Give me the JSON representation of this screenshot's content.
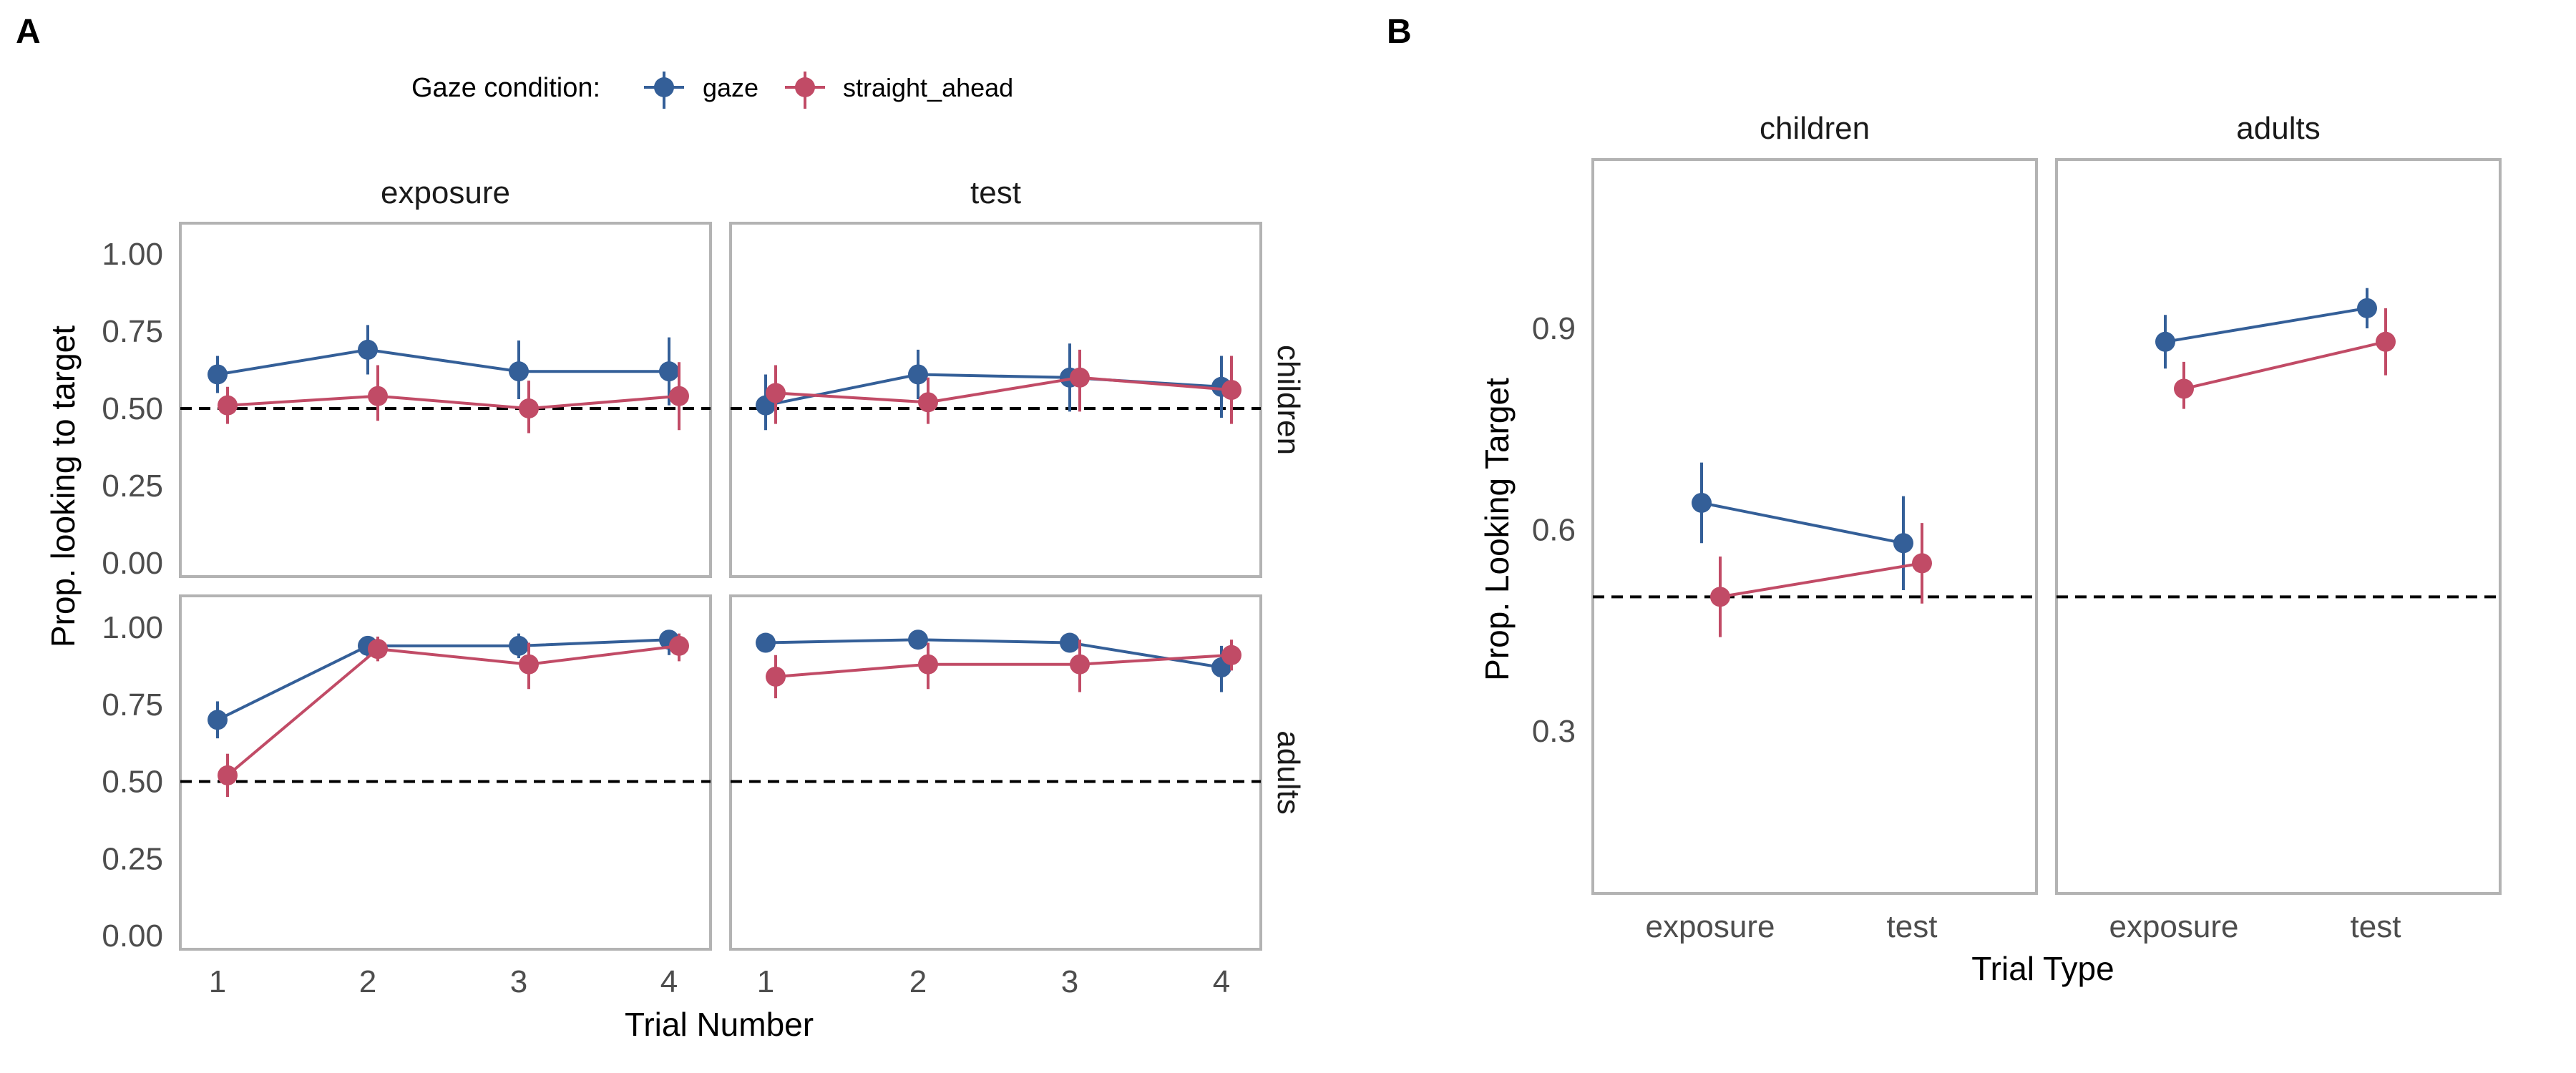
{
  "figure": {
    "panel_a_letter": "A",
    "panel_b_letter": "B"
  },
  "colors": {
    "gaze": "#345f98",
    "straight_ahead": "#c14b66"
  },
  "legend": {
    "title": "Gaze condition:",
    "items": [
      "gaze",
      "straight_ahead"
    ]
  },
  "chart_data": [
    {
      "type": "line",
      "panel": "A",
      "xlabel": "Trial Number",
      "ylabel": "Prop. looking to target",
      "x": [
        1,
        2,
        3,
        4
      ],
      "xticks": [
        "1",
        "2",
        "3",
        "4"
      ],
      "ylim": [
        0,
        1.0
      ],
      "yticks": [
        "0.00",
        "0.25",
        "0.50",
        "0.75",
        "1.00"
      ],
      "reference_line": 0.5,
      "grid": false,
      "legend_position": "top",
      "col_facets": [
        "exposure",
        "test"
      ],
      "row_facets": [
        "children",
        "adults"
      ],
      "facets": [
        {
          "row": "children",
          "col": "exposure",
          "series": [
            {
              "name": "gaze",
              "values": [
                0.61,
                0.69,
                0.62,
                0.62
              ],
              "lower": [
                0.55,
                0.61,
                0.53,
                0.51
              ],
              "upper": [
                0.67,
                0.77,
                0.72,
                0.73
              ]
            },
            {
              "name": "straight_ahead",
              "values": [
                0.51,
                0.54,
                0.5,
                0.54
              ],
              "lower": [
                0.45,
                0.46,
                0.42,
                0.43
              ],
              "upper": [
                0.57,
                0.64,
                0.59,
                0.65
              ]
            }
          ]
        },
        {
          "row": "children",
          "col": "test",
          "series": [
            {
              "name": "gaze",
              "values": [
                0.51,
                0.61,
                0.6,
                0.57
              ],
              "lower": [
                0.43,
                0.53,
                0.49,
                0.47
              ],
              "upper": [
                0.61,
                0.69,
                0.71,
                0.67
              ]
            },
            {
              "name": "straight_ahead",
              "values": [
                0.55,
                0.52,
                0.6,
                0.56
              ],
              "lower": [
                0.45,
                0.45,
                0.49,
                0.45
              ],
              "upper": [
                0.64,
                0.6,
                0.69,
                0.67
              ]
            }
          ]
        },
        {
          "row": "adults",
          "col": "exposure",
          "series": [
            {
              "name": "gaze",
              "values": [
                0.7,
                0.94,
                0.94,
                0.96
              ],
              "lower": [
                0.64,
                0.9,
                0.9,
                0.91
              ],
              "upper": [
                0.76,
                0.97,
                0.98,
                0.98
              ]
            },
            {
              "name": "straight_ahead",
              "values": [
                0.52,
                0.93,
                0.88,
                0.94
              ],
              "lower": [
                0.45,
                0.89,
                0.8,
                0.89
              ],
              "upper": [
                0.59,
                0.97,
                0.95,
                0.98
              ]
            }
          ]
        },
        {
          "row": "adults",
          "col": "test",
          "series": [
            {
              "name": "gaze",
              "values": [
                0.95,
                0.96,
                0.95,
                0.87
              ],
              "lower": [
                0.93,
                0.93,
                0.92,
                0.79
              ],
              "upper": [
                0.97,
                0.97,
                0.98,
                0.94
              ]
            },
            {
              "name": "straight_ahead",
              "values": [
                0.84,
                0.88,
                0.88,
                0.91
              ],
              "lower": [
                0.77,
                0.8,
                0.79,
                0.86
              ],
              "upper": [
                0.91,
                0.95,
                0.96,
                0.96
              ]
            }
          ]
        }
      ]
    },
    {
      "type": "line",
      "panel": "B",
      "xlabel": "Trial Type",
      "ylabel": "Prop. Looking Target",
      "categories": [
        "exposure",
        "test"
      ],
      "ylim": [
        0.0,
        1.1
      ],
      "yticks": [
        "0.3",
        "0.6",
        "0.9"
      ],
      "reference_line": 0.5,
      "grid": false,
      "col_facets": [
        "children",
        "adults"
      ],
      "facets": [
        {
          "col": "children",
          "series": [
            {
              "name": "gaze",
              "values": [
                0.64,
                0.58
              ],
              "lower": [
                0.58,
                0.51
              ],
              "upper": [
                0.7,
                0.65
              ]
            },
            {
              "name": "straight_ahead",
              "values": [
                0.5,
                0.55
              ],
              "lower": [
                0.44,
                0.49
              ],
              "upper": [
                0.56,
                0.61
              ]
            }
          ]
        },
        {
          "col": "adults",
          "series": [
            {
              "name": "gaze",
              "values": [
                0.88,
                0.93
              ],
              "lower": [
                0.84,
                0.9
              ],
              "upper": [
                0.92,
                0.96
              ]
            },
            {
              "name": "straight_ahead",
              "values": [
                0.81,
                0.88
              ],
              "lower": [
                0.78,
                0.83
              ],
              "upper": [
                0.85,
                0.93
              ]
            }
          ]
        }
      ]
    }
  ]
}
